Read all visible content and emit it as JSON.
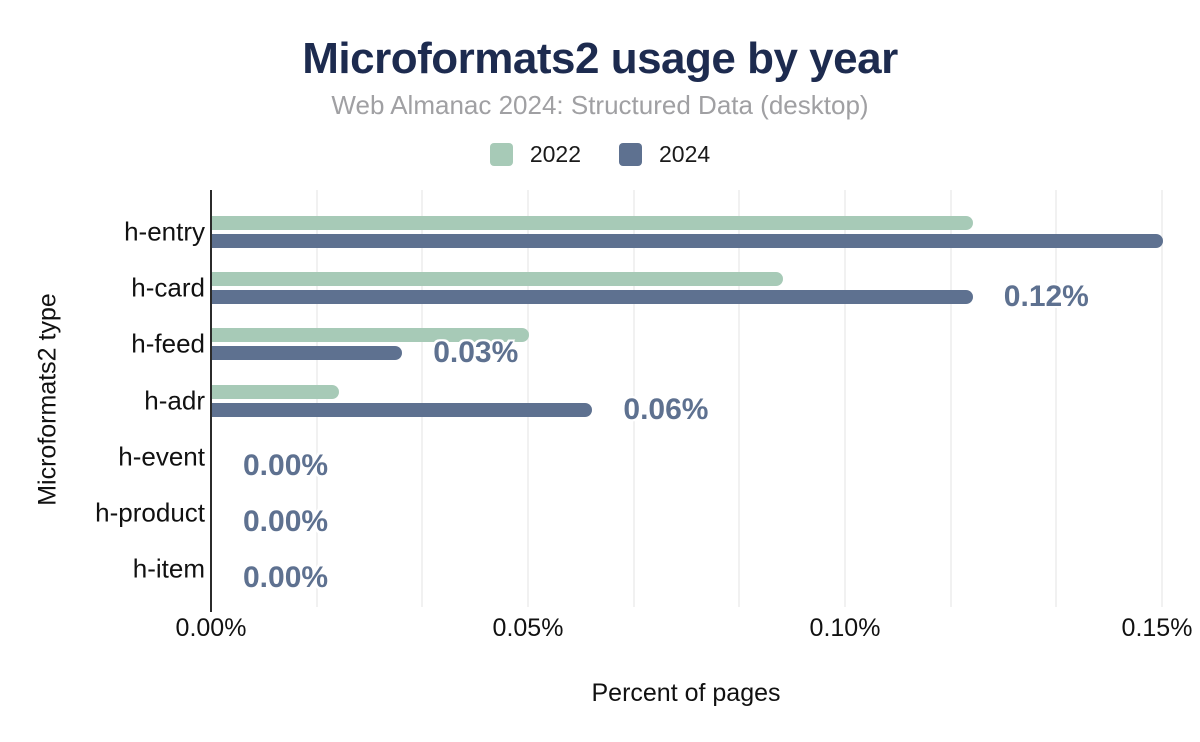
{
  "header": {
    "title": "Microformats2 usage by year",
    "subtitle": "Web Almanac 2024: Structured Data (desktop)"
  },
  "legend": {
    "items": [
      {
        "label": "2022",
        "color": "#a7cab7"
      },
      {
        "label": "2024",
        "color": "#5e7190"
      }
    ]
  },
  "chart_data": {
    "type": "bar",
    "orientation": "horizontal",
    "title": "Microformats2 usage by year",
    "subtitle": "Web Almanac 2024: Structured Data (desktop)",
    "xlabel": "Percent of pages",
    "ylabel": "Microformats2 type",
    "xlim": [
      0,
      0.15
    ],
    "x_tick_labels": [
      "0.00%",
      "0.05%",
      "0.10%",
      "0.15%"
    ],
    "grid": "vertical, minor gridlines every 0.0167%",
    "legend_position": "top",
    "categories": [
      "h-entry",
      "h-card",
      "h-feed",
      "h-adr",
      "h-event",
      "h-product",
      "h-item"
    ],
    "series": [
      {
        "name": "2022",
        "color": "#a7cab7",
        "values": [
          0.12,
          0.09,
          0.05,
          0.02,
          0.0,
          0.0,
          0.0
        ]
      },
      {
        "name": "2024",
        "color": "#5e7190",
        "values": [
          0.15,
          0.12,
          0.03,
          0.06,
          0.0,
          0.0,
          0.0
        ]
      }
    ],
    "value_labels": {
      "series": "2024",
      "labels": [
        "",
        "0.12%",
        "0.03%",
        "0.06%",
        "0.00%",
        "0.00%",
        "0.00%"
      ],
      "color": "#5e7190"
    }
  },
  "colors": {
    "title": "#1d2b4f",
    "subtitle": "#a0a0a3",
    "axis_line": "#2b2b2b",
    "gridline": "#f1f1f1"
  }
}
